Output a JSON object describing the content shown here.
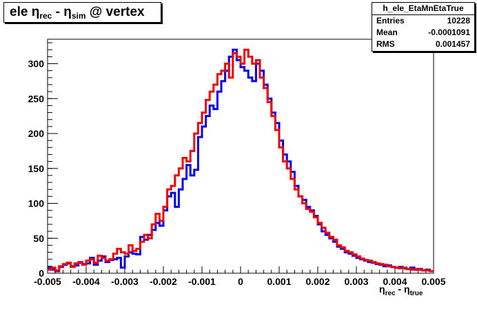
{
  "title": {
    "main": "ele η",
    "sub1": "rec",
    "mid": " - η",
    "sub2": "sim",
    "tail": " @ vertex"
  },
  "stats": {
    "name": "h_ele_EtaMnEtaTrue",
    "rows": [
      {
        "label": "Entries",
        "value": "10228"
      },
      {
        "label": "Mean",
        "value": "-0.0001091"
      },
      {
        "label": "RMS",
        "value": "0.001457"
      }
    ]
  },
  "xlabel": {
    "a": "η",
    "asub": "rec",
    "b": " - η",
    "bsub": "true"
  },
  "chart_data": {
    "type": "line",
    "subtype": "step-histogram",
    "xlim": [
      -0.005,
      0.005
    ],
    "ylim": [
      0,
      335
    ],
    "xticks": [
      -0.005,
      -0.004,
      -0.003,
      -0.002,
      -0.001,
      0,
      0.001,
      0.002,
      0.003,
      0.004,
      0.005
    ],
    "xtick_labels": [
      "-0.005",
      "-0.004",
      "-0.003",
      "-0.002",
      "-0.001",
      "0",
      "0.001",
      "0.002",
      "0.003",
      "0.004",
      "0.005"
    ],
    "yticks": [
      0,
      50,
      100,
      150,
      200,
      250,
      300
    ],
    "ytick_labels": [
      "0",
      "50",
      "100",
      "150",
      "200",
      "250",
      "300"
    ],
    "bins": 100,
    "series": [
      {
        "color": "#0000ee",
        "values": [
          8,
          5,
          3,
          9,
          12,
          14,
          10,
          11,
          15,
          13,
          14,
          22,
          12,
          18,
          24,
          16,
          19,
          20,
          22,
          8,
          24,
          30,
          28,
          27,
          52,
          48,
          55,
          62,
          72,
          68,
          90,
          110,
          115,
          95,
          120,
          135,
          155,
          140,
          148,
          195,
          210,
          225,
          240,
          235,
          260,
          275,
          290,
          310,
          320,
          305,
          295,
          290,
          280,
          275,
          300,
          290,
          270,
          250,
          230,
          215,
          190,
          170,
          160,
          145,
          125,
          110,
          105,
          95,
          90,
          82,
          70,
          60,
          55,
          50,
          45,
          38,
          35,
          30,
          28,
          25,
          22,
          20,
          18,
          16,
          15,
          13,
          12,
          10,
          11,
          9,
          8,
          9,
          7,
          6,
          8,
          5,
          6,
          4,
          5,
          3
        ]
      },
      {
        "color": "#ee0000",
        "values": [
          5,
          8,
          4,
          10,
          13,
          15,
          9,
          14,
          16,
          12,
          18,
          20,
          15,
          25,
          22,
          18,
          20,
          28,
          35,
          30,
          28,
          40,
          32,
          35,
          45,
          55,
          50,
          70,
          85,
          75,
          95,
          120,
          125,
          140,
          150,
          165,
          160,
          175,
          200,
          215,
          230,
          248,
          260,
          270,
          285,
          290,
          300,
          280,
          315,
          310,
          300,
          320,
          310,
          300,
          305,
          280,
          265,
          245,
          225,
          205,
          180,
          160,
          150,
          135,
          120,
          110,
          100,
          92,
          88,
          80,
          72,
          65,
          58,
          52,
          48,
          40,
          37,
          32,
          30,
          27,
          24,
          21,
          19,
          18,
          16,
          14,
          13,
          12,
          10,
          9,
          8,
          7,
          8,
          6,
          5,
          6,
          5,
          4,
          4,
          3
        ]
      }
    ]
  }
}
